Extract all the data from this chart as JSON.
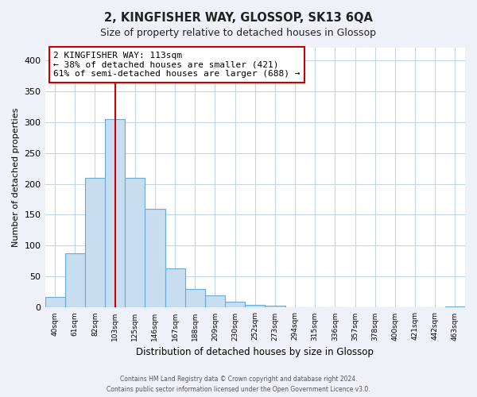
{
  "title": "2, KINGFISHER WAY, GLOSSOP, SK13 6QA",
  "subtitle": "Size of property relative to detached houses in Glossop",
  "xlabel": "Distribution of detached houses by size in Glossop",
  "ylabel": "Number of detached properties",
  "bar_color": "#c8ddf0",
  "bar_edge_color": "#6aaad4",
  "categories": [
    "40sqm",
    "61sqm",
    "82sqm",
    "103sqm",
    "125sqm",
    "146sqm",
    "167sqm",
    "188sqm",
    "209sqm",
    "230sqm",
    "252sqm",
    "273sqm",
    "294sqm",
    "315sqm",
    "336sqm",
    "357sqm",
    "378sqm",
    "400sqm",
    "421sqm",
    "442sqm",
    "463sqm"
  ],
  "values": [
    17,
    88,
    210,
    305,
    210,
    160,
    63,
    30,
    20,
    10,
    5,
    3,
    1,
    1,
    0,
    1,
    0,
    0,
    1,
    0,
    2
  ],
  "vline_x_idx": 3,
  "vline_color": "#cc0000",
  "annotation_line1": "2 KINGFISHER WAY: 113sqm",
  "annotation_line2": "← 38% of detached houses are smaller (421)",
  "annotation_line3": "61% of semi-detached houses are larger (688) →",
  "annotation_box_edgecolor": "#cc0000",
  "ylim": [
    0,
    420
  ],
  "yticks": [
    0,
    50,
    100,
    150,
    200,
    250,
    300,
    350,
    400
  ],
  "footer1": "Contains HM Land Registry data © Crown copyright and database right 2024.",
  "footer2": "Contains public sector information licensed under the Open Government Licence v3.0.",
  "bg_color": "#eef2f8",
  "plot_bg_color": "#ffffff",
  "grid_color": "#c5d5e8"
}
